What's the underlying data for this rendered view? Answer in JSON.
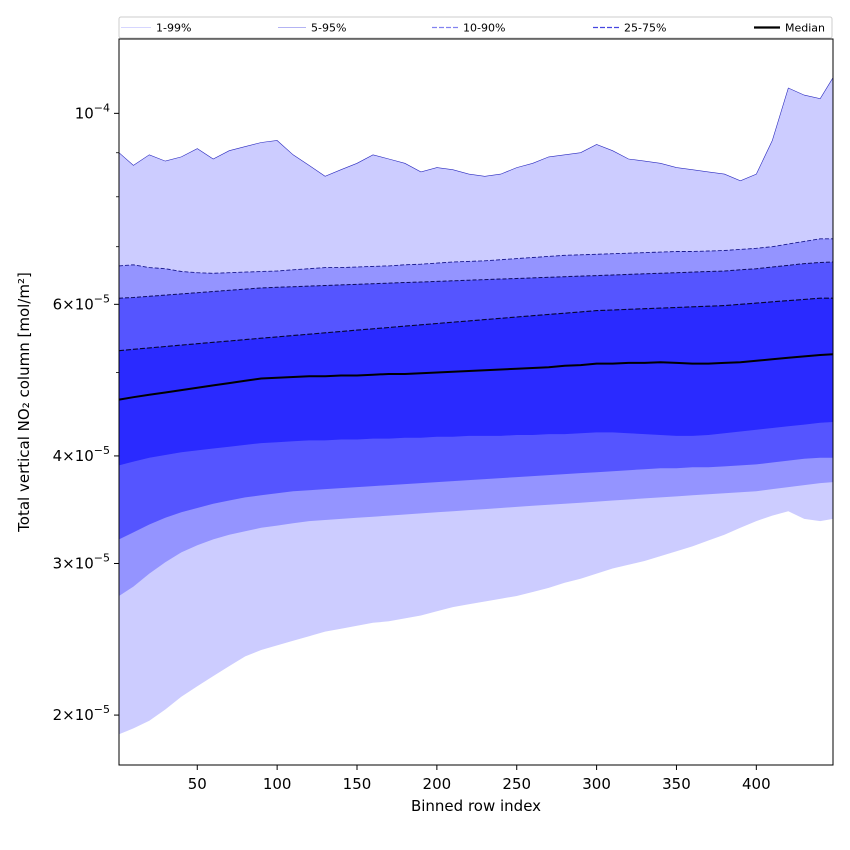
{
  "chart_data": {
    "type": "area",
    "xlabel": "Binned row index",
    "ylabel": "Total vertical NO₂ column [mol/m²]",
    "xlim": [
      1,
      448
    ],
    "ylim": [
      1.75e-05,
      0.000122
    ],
    "yscale": "log",
    "x_ticks": [
      50,
      100,
      150,
      200,
      250,
      300,
      350,
      400
    ],
    "y_ticks": [
      {
        "value": 2e-05,
        "mantissa": "2",
        "exponent": "−5"
      },
      {
        "value": 3e-05,
        "mantissa": "3",
        "exponent": "−5"
      },
      {
        "value": 4e-05,
        "mantissa": "4",
        "exponent": "−5"
      },
      {
        "value": 6e-05,
        "mantissa": "6",
        "exponent": "−5"
      },
      {
        "value": 0.0001,
        "mantissa": "",
        "exponent": "−4"
      }
    ],
    "legend_position": "top",
    "legend": [
      {
        "name": "1-99%",
        "style": "solid",
        "color": "#c8c8ff"
      },
      {
        "name": "5-95%",
        "style": "solid",
        "color": "#9a9aef"
      },
      {
        "name": "10-90%",
        "style": "dashed",
        "color": "#8282f0"
      },
      {
        "name": "25-75%",
        "style": "dashed",
        "color": "#4646e0"
      },
      {
        "name": "Median",
        "style": "solid",
        "color": "#000000"
      }
    ],
    "x": [
      1,
      10,
      20,
      30,
      40,
      50,
      60,
      70,
      80,
      90,
      100,
      110,
      120,
      130,
      140,
      150,
      160,
      170,
      180,
      190,
      200,
      210,
      220,
      230,
      240,
      250,
      260,
      270,
      280,
      290,
      300,
      310,
      320,
      330,
      340,
      350,
      360,
      370,
      380,
      390,
      400,
      410,
      420,
      430,
      440,
      448
    ],
    "bands": [
      {
        "name": "1-99%",
        "color": "#ccccff",
        "lower": [
          1.9e-05,
          1.93e-05,
          1.97e-05,
          2.03e-05,
          2.1e-05,
          2.16e-05,
          2.22e-05,
          2.28e-05,
          2.34e-05,
          2.38e-05,
          2.41e-05,
          2.44e-05,
          2.47e-05,
          2.5e-05,
          2.52e-05,
          2.54e-05,
          2.56e-05,
          2.57e-05,
          2.59e-05,
          2.61e-05,
          2.64e-05,
          2.67e-05,
          2.69e-05,
          2.71e-05,
          2.73e-05,
          2.75e-05,
          2.78e-05,
          2.81e-05,
          2.85e-05,
          2.88e-05,
          2.92e-05,
          2.96e-05,
          2.99e-05,
          3.02e-05,
          3.06e-05,
          3.1e-05,
          3.14e-05,
          3.19e-05,
          3.24e-05,
          3.3e-05,
          3.36e-05,
          3.41e-05,
          3.45e-05,
          3.38e-05,
          3.36e-05,
          3.38e-05
        ],
        "upper": [
          9e-05,
          8.7e-05,
          8.95e-05,
          8.8e-05,
          8.9e-05,
          9.1e-05,
          8.85e-05,
          9.05e-05,
          9.15e-05,
          9.25e-05,
          9.3e-05,
          8.95e-05,
          8.7e-05,
          8.45e-05,
          8.6e-05,
          8.75e-05,
          8.95e-05,
          8.85e-05,
          8.75e-05,
          8.55e-05,
          8.65e-05,
          8.6e-05,
          8.5e-05,
          8.45e-05,
          8.5e-05,
          8.65e-05,
          8.75e-05,
          8.9e-05,
          8.95e-05,
          9e-05,
          9.2e-05,
          9.05e-05,
          8.85e-05,
          8.8e-05,
          8.75e-05,
          8.65e-05,
          8.6e-05,
          8.55e-05,
          8.5e-05,
          8.35e-05,
          8.5e-05,
          9.3e-05,
          0.000107,
          0.000105,
          0.000104,
          0.00011
        ]
      },
      {
        "name": "5-95%",
        "color": "#9494ff",
        "lower": [
          2.75e-05,
          2.82e-05,
          2.92e-05,
          3.01e-05,
          3.09e-05,
          3.15e-05,
          3.2e-05,
          3.24e-05,
          3.27e-05,
          3.3e-05,
          3.32e-05,
          3.34e-05,
          3.36e-05,
          3.37e-05,
          3.38e-05,
          3.39e-05,
          3.4e-05,
          3.41e-05,
          3.42e-05,
          3.43e-05,
          3.44e-05,
          3.45e-05,
          3.46e-05,
          3.47e-05,
          3.48e-05,
          3.49e-05,
          3.5e-05,
          3.51e-05,
          3.52e-05,
          3.53e-05,
          3.54e-05,
          3.55e-05,
          3.56e-05,
          3.57e-05,
          3.58e-05,
          3.59e-05,
          3.6e-05,
          3.61e-05,
          3.62e-05,
          3.63e-05,
          3.64e-05,
          3.66e-05,
          3.68e-05,
          3.7e-05,
          3.72e-05,
          3.73e-05
        ],
        "upper": [
          6.65e-05,
          6.67e-05,
          6.62e-05,
          6.6e-05,
          6.55e-05,
          6.53e-05,
          6.52e-05,
          6.53e-05,
          6.54e-05,
          6.55e-05,
          6.56e-05,
          6.58e-05,
          6.6e-05,
          6.62e-05,
          6.62e-05,
          6.63e-05,
          6.64e-05,
          6.65e-05,
          6.67e-05,
          6.68e-05,
          6.7e-05,
          6.72e-05,
          6.73e-05,
          6.74e-05,
          6.76e-05,
          6.78e-05,
          6.8e-05,
          6.82e-05,
          6.84e-05,
          6.85e-05,
          6.86e-05,
          6.87e-05,
          6.88e-05,
          6.89e-05,
          6.9e-05,
          6.91e-05,
          6.91e-05,
          6.92e-05,
          6.93e-05,
          6.95e-05,
          6.97e-05,
          7e-05,
          7.05e-05,
          7.1e-05,
          7.15e-05,
          7.15e-05
        ]
      },
      {
        "name": "10-90%",
        "color": "#5555ff",
        "lower": [
          3.2e-05,
          3.26e-05,
          3.33e-05,
          3.39e-05,
          3.44e-05,
          3.48e-05,
          3.52e-05,
          3.55e-05,
          3.58e-05,
          3.6e-05,
          3.62e-05,
          3.64e-05,
          3.65e-05,
          3.66e-05,
          3.67e-05,
          3.68e-05,
          3.69e-05,
          3.7e-05,
          3.71e-05,
          3.72e-05,
          3.73e-05,
          3.74e-05,
          3.75e-05,
          3.76e-05,
          3.77e-05,
          3.78e-05,
          3.79e-05,
          3.8e-05,
          3.81e-05,
          3.82e-05,
          3.83e-05,
          3.84e-05,
          3.85e-05,
          3.86e-05,
          3.87e-05,
          3.87e-05,
          3.88e-05,
          3.88e-05,
          3.89e-05,
          3.9e-05,
          3.91e-05,
          3.93e-05,
          3.95e-05,
          3.97e-05,
          3.98e-05,
          3.98e-05
        ],
        "upper": [
          6.1e-05,
          6.11e-05,
          6.13e-05,
          6.15e-05,
          6.17e-05,
          6.19e-05,
          6.21e-05,
          6.23e-05,
          6.25e-05,
          6.27e-05,
          6.28e-05,
          6.29e-05,
          6.3e-05,
          6.31e-05,
          6.32e-05,
          6.33e-05,
          6.34e-05,
          6.35e-05,
          6.36e-05,
          6.37e-05,
          6.38e-05,
          6.39e-05,
          6.4e-05,
          6.41e-05,
          6.42e-05,
          6.43e-05,
          6.44e-05,
          6.45e-05,
          6.46e-05,
          6.47e-05,
          6.48e-05,
          6.49e-05,
          6.5e-05,
          6.51e-05,
          6.52e-05,
          6.53e-05,
          6.54e-05,
          6.55e-05,
          6.56e-05,
          6.58e-05,
          6.6e-05,
          6.63e-05,
          6.66e-05,
          6.69e-05,
          6.71e-05,
          6.72e-05
        ]
      },
      {
        "name": "25-75%",
        "color": "#2a2aff",
        "lower": [
          3.9e-05,
          3.94e-05,
          3.98e-05,
          4.01e-05,
          4.04e-05,
          4.06e-05,
          4.08e-05,
          4.1e-05,
          4.12e-05,
          4.14e-05,
          4.15e-05,
          4.16e-05,
          4.17e-05,
          4.17e-05,
          4.18e-05,
          4.18e-05,
          4.19e-05,
          4.19e-05,
          4.2e-05,
          4.2e-05,
          4.21e-05,
          4.21e-05,
          4.22e-05,
          4.22e-05,
          4.22e-05,
          4.23e-05,
          4.23e-05,
          4.24e-05,
          4.24e-05,
          4.25e-05,
          4.26e-05,
          4.26e-05,
          4.25e-05,
          4.24e-05,
          4.23e-05,
          4.22e-05,
          4.22e-05,
          4.23e-05,
          4.25e-05,
          4.27e-05,
          4.29e-05,
          4.31e-05,
          4.33e-05,
          4.35e-05,
          4.37e-05,
          4.38e-05
        ],
        "upper": [
          5.3e-05,
          5.32e-05,
          5.34e-05,
          5.36e-05,
          5.38e-05,
          5.4e-05,
          5.42e-05,
          5.44e-05,
          5.46e-05,
          5.48e-05,
          5.5e-05,
          5.52e-05,
          5.54e-05,
          5.56e-05,
          5.58e-05,
          5.6e-05,
          5.62e-05,
          5.64e-05,
          5.66e-05,
          5.68e-05,
          5.7e-05,
          5.72e-05,
          5.74e-05,
          5.76e-05,
          5.78e-05,
          5.8e-05,
          5.82e-05,
          5.84e-05,
          5.86e-05,
          5.88e-05,
          5.9e-05,
          5.91e-05,
          5.92e-05,
          5.93e-05,
          5.94e-05,
          5.95e-05,
          5.96e-05,
          5.97e-05,
          5.98e-05,
          6e-05,
          6.02e-05,
          6.04e-05,
          6.06e-05,
          6.08e-05,
          6.1e-05,
          6.1e-05
        ]
      }
    ],
    "median": [
      4.65e-05,
      4.68e-05,
      4.71e-05,
      4.74e-05,
      4.77e-05,
      4.8e-05,
      4.83e-05,
      4.86e-05,
      4.89e-05,
      4.92e-05,
      4.93e-05,
      4.94e-05,
      4.95e-05,
      4.95e-05,
      4.96e-05,
      4.96e-05,
      4.97e-05,
      4.98e-05,
      4.98e-05,
      4.99e-05,
      5e-05,
      5.01e-05,
      5.02e-05,
      5.03e-05,
      5.04e-05,
      5.05e-05,
      5.06e-05,
      5.07e-05,
      5.09e-05,
      5.1e-05,
      5.12e-05,
      5.12e-05,
      5.13e-05,
      5.13e-05,
      5.14e-05,
      5.13e-05,
      5.12e-05,
      5.12e-05,
      5.13e-05,
      5.14e-05,
      5.16e-05,
      5.18e-05,
      5.2e-05,
      5.22e-05,
      5.24e-05,
      5.25e-05
    ]
  }
}
